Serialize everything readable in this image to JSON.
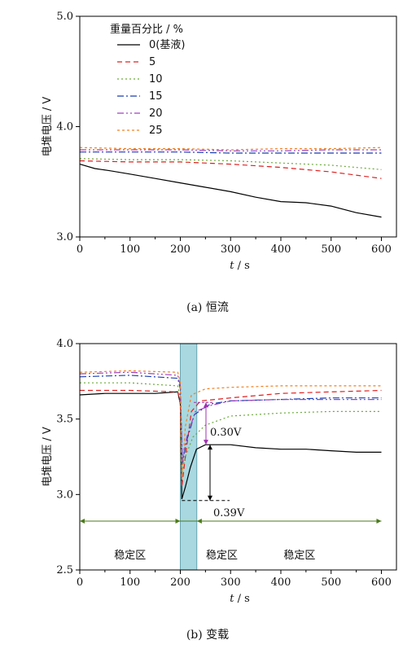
{
  "chart_data": [
    {
      "type": "line",
      "caption": "(a)  恒流",
      "xlabel": "t / s",
      "ylabel": "电堆电压 / V",
      "xlim": [
        0,
        630
      ],
      "ylim": [
        3.0,
        5.0
      ],
      "xticks": [
        0,
        100,
        200,
        300,
        400,
        500,
        600
      ],
      "yticks": [
        3.0,
        4.0,
        5.0
      ],
      "ytick_labels": [
        "3.0",
        "4.0",
        "5.0"
      ],
      "legend_title": "重量百分比 / %",
      "legend_position": "top-left",
      "series": [
        {
          "name": "0(基液)",
          "color": "#000000",
          "dash": "none",
          "x": [
            0,
            30,
            60,
            100,
            150,
            200,
            250,
            300,
            350,
            400,
            450,
            500,
            550,
            600
          ],
          "y": [
            3.66,
            3.62,
            3.6,
            3.57,
            3.53,
            3.49,
            3.45,
            3.41,
            3.36,
            3.32,
            3.31,
            3.28,
            3.22,
            3.18
          ]
        },
        {
          "name": "5",
          "color": "#e02020",
          "dash": "6,4",
          "x": [
            0,
            100,
            200,
            300,
            400,
            500,
            600
          ],
          "y": [
            3.69,
            3.68,
            3.68,
            3.66,
            3.63,
            3.59,
            3.53
          ]
        },
        {
          "name": "10",
          "color": "#6aaa3a",
          "dash": "2,3",
          "x": [
            0,
            100,
            200,
            300,
            400,
            500,
            600
          ],
          "y": [
            3.71,
            3.7,
            3.7,
            3.69,
            3.67,
            3.65,
            3.61
          ]
        },
        {
          "name": "15",
          "color": "#1a3fb0",
          "dash": "8,3,2,3",
          "x": [
            0,
            100,
            200,
            300,
            400,
            500,
            600
          ],
          "y": [
            3.77,
            3.77,
            3.77,
            3.76,
            3.76,
            3.76,
            3.76
          ]
        },
        {
          "name": "20",
          "color": "#a040c0",
          "dash": "8,3,2,3,2,3",
          "x": [
            0,
            100,
            200,
            300,
            400,
            500,
            600
          ],
          "y": [
            3.79,
            3.79,
            3.79,
            3.78,
            3.78,
            3.79,
            3.79
          ]
        },
        {
          "name": "25",
          "color": "#f08020",
          "dash": "3,3",
          "x": [
            0,
            100,
            200,
            300,
            400,
            500,
            600
          ],
          "y": [
            3.81,
            3.8,
            3.8,
            3.79,
            3.8,
            3.8,
            3.81
          ]
        }
      ]
    },
    {
      "type": "line",
      "caption": "(b)  变载",
      "xlabel": "t / s",
      "ylabel": "电堆电压 / V",
      "xlim": [
        0,
        630
      ],
      "ylim": [
        2.5,
        4.0
      ],
      "xticks": [
        0,
        100,
        200,
        300,
        400,
        500,
        600
      ],
      "yticks": [
        2.5,
        3.0,
        3.5,
        4.0
      ],
      "ytick_labels": [
        "2.5",
        "3.0",
        "3.5",
        "4.0"
      ],
      "transition_band": [
        200,
        233
      ],
      "transition_color": "#a9d8e0",
      "regions": [
        {
          "label": "稳定区",
          "x": 100,
          "color": "#6a7f1e"
        },
        {
          "label": "稳定区",
          "x": 234,
          "color": "#e06a10"
        },
        {
          "label": "稳定区",
          "x": 437,
          "color": "#6a7f1e"
        }
      ],
      "annotations": [
        {
          "text": "0.30V",
          "color": "#a030b0"
        },
        {
          "text": "0.39V",
          "color": "#000000"
        }
      ],
      "series": [
        {
          "name": "0(基液)",
          "color": "#000000",
          "dash": "none",
          "x": [
            0,
            50,
            100,
            150,
            195,
            200,
            203,
            210,
            220,
            232,
            250,
            300,
            350,
            400,
            450,
            500,
            550,
            600
          ],
          "y": [
            3.66,
            3.67,
            3.67,
            3.67,
            3.68,
            3.6,
            2.97,
            3.05,
            3.18,
            3.3,
            3.33,
            3.33,
            3.31,
            3.3,
            3.3,
            3.29,
            3.28,
            3.28
          ]
        },
        {
          "name": "5",
          "color": "#e02020",
          "dash": "6,4",
          "x": [
            0,
            100,
            195,
            200,
            203,
            210,
            222,
            240,
            300,
            400,
            500,
            600
          ],
          "y": [
            3.69,
            3.69,
            3.68,
            3.6,
            3.05,
            3.25,
            3.55,
            3.62,
            3.64,
            3.67,
            3.68,
            3.69
          ]
        },
        {
          "name": "10",
          "color": "#6aaa3a",
          "dash": "2,3",
          "x": [
            0,
            100,
            195,
            200,
            203,
            210,
            225,
            250,
            300,
            400,
            500,
            600
          ],
          "y": [
            3.74,
            3.74,
            3.72,
            3.64,
            3.14,
            3.25,
            3.38,
            3.46,
            3.52,
            3.54,
            3.55,
            3.55
          ]
        },
        {
          "name": "15",
          "color": "#1a3fb0",
          "dash": "8,3,2,3",
          "x": [
            0,
            100,
            195,
            200,
            204,
            212,
            228,
            260,
            300,
            400,
            500,
            600
          ],
          "y": [
            3.78,
            3.79,
            3.77,
            3.7,
            3.2,
            3.35,
            3.53,
            3.6,
            3.62,
            3.63,
            3.64,
            3.64
          ]
        },
        {
          "name": "20",
          "color": "#a040c0",
          "dash": "8,3,2,3,2,3",
          "x": [
            0,
            100,
            195,
            200,
            204,
            213,
            230,
            260,
            300,
            400,
            500,
            600
          ],
          "y": [
            3.8,
            3.81,
            3.79,
            3.72,
            3.22,
            3.38,
            3.55,
            3.59,
            3.62,
            3.63,
            3.63,
            3.63
          ]
        },
        {
          "name": "25",
          "color": "#f08020",
          "dash": "3,3",
          "x": [
            0,
            100,
            195,
            200,
            203,
            210,
            222,
            250,
            300,
            400,
            500,
            600
          ],
          "y": [
            3.81,
            3.82,
            3.81,
            3.74,
            3.1,
            3.45,
            3.66,
            3.7,
            3.71,
            3.72,
            3.72,
            3.72
          ]
        }
      ]
    }
  ]
}
